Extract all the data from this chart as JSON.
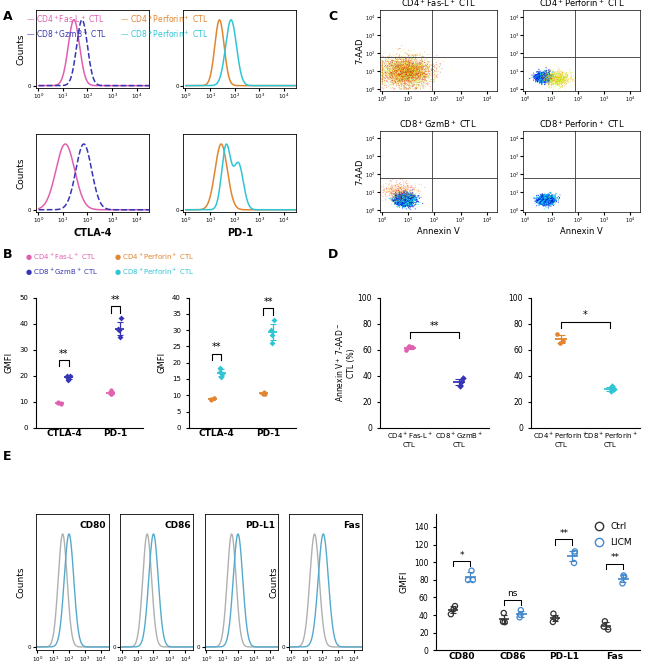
{
  "colors": {
    "cd4fas": "#e060b0",
    "cd8gzmb": "#3535b5",
    "cd4perf": "#e08530",
    "cd8perf": "#30c5d5",
    "ctrl_open": "#333333",
    "licm_open": "#4488cc",
    "hist_gray": "#b0b0b0",
    "hist_blue": "#55aacc"
  },
  "panel_E_markers": [
    "CD80",
    "CD86",
    "PD-L1",
    "Fas"
  ],
  "panel_E_ctrl": [
    43,
    37,
    37,
    30
  ],
  "panel_E_licm": [
    88,
    45,
    110,
    85
  ],
  "panel_E_sig": [
    "*",
    "ns",
    "**",
    "**"
  ],
  "background_color": "#ffffff"
}
